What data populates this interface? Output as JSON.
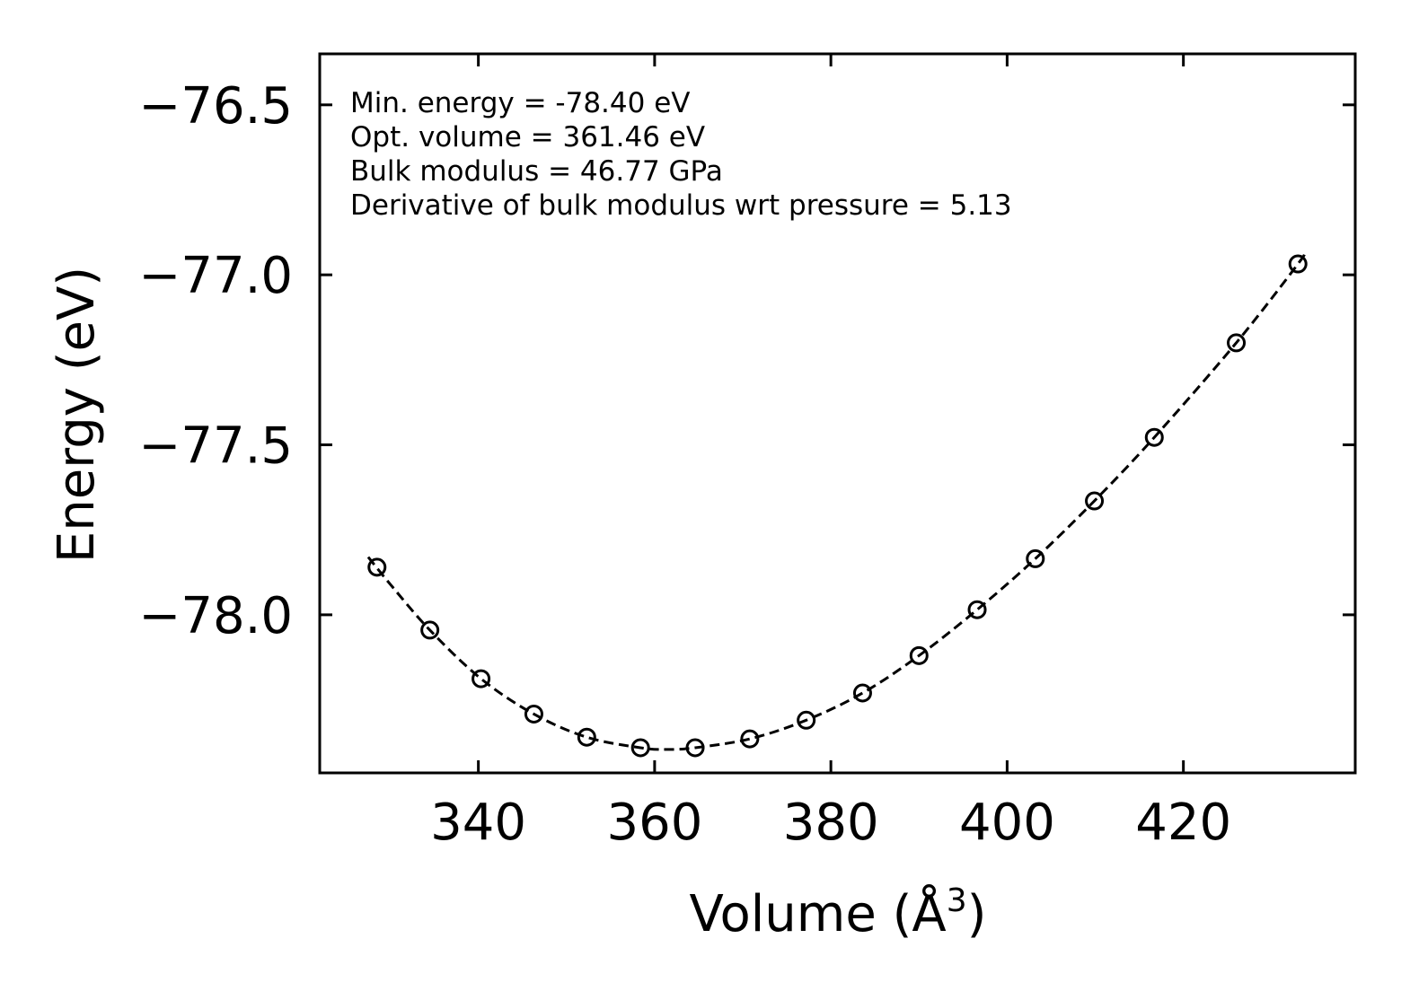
{
  "chart_data": {
    "type": "line",
    "title": "",
    "xlabel": "Volume (Å",
    "xlabel_sup": "3",
    "xlabel_close": ")",
    "ylabel": "Energy (eV)",
    "xlim": [
      322,
      439.5
    ],
    "ylim": [
      -78.465,
      -76.35
    ],
    "xticks": [
      340,
      360,
      380,
      400,
      420
    ],
    "xtick_labels": [
      "340",
      "360",
      "380",
      "400",
      "420"
    ],
    "yticks": [
      -76.5,
      -77.0,
      -77.5,
      -78.0
    ],
    "ytick_labels": [
      "−76.5",
      "−77.0",
      "−77.5",
      "−78.0"
    ],
    "annotations": [
      "Min. energy = -78.40 eV",
      "Opt. volume = 361.46 eV",
      "Bulk modulus = 46.77 GPa",
      "Derivative of bulk modulus wrt pressure = 5.13"
    ],
    "series": [
      {
        "name": "data",
        "style": "markers",
        "x": [
          328.5,
          334.5,
          340.3,
          346.3,
          352.3,
          358.4,
          364.6,
          370.8,
          377.2,
          383.6,
          390.0,
          396.6,
          403.2,
          409.9,
          416.7,
          426.0,
          433.0
        ],
        "y": [
          -77.86,
          -78.045,
          -78.188,
          -78.292,
          -78.36,
          -78.391,
          -78.391,
          -78.365,
          -78.31,
          -78.23,
          -78.12,
          -77.985,
          -77.835,
          -77.665,
          -77.478,
          -77.2,
          -76.968
        ]
      },
      {
        "name": "fit",
        "style": "dashed",
        "x": [
          327.5,
          330,
          334.5,
          340.3,
          346.3,
          352.3,
          358.4,
          361.46,
          364.6,
          370.8,
          377.2,
          383.6,
          390.0,
          396.6,
          403.2,
          409.9,
          416.7,
          426.0,
          433.0,
          433.6
        ],
        "y": [
          -77.83,
          -77.91,
          -78.045,
          -78.188,
          -78.292,
          -78.36,
          -78.391,
          -78.396,
          -78.391,
          -78.365,
          -78.31,
          -78.23,
          -78.12,
          -77.985,
          -77.835,
          -77.665,
          -77.478,
          -77.2,
          -76.968,
          -76.94
        ]
      }
    ]
  }
}
